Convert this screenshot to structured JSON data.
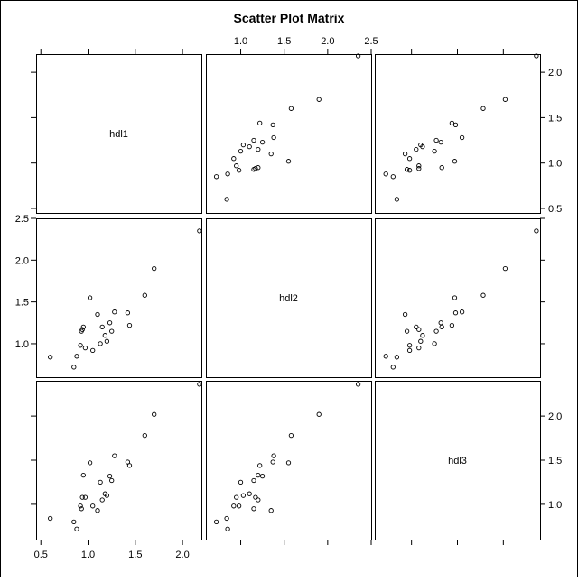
{
  "chart_data": {
    "type": "scatter",
    "title": "Scatter Plot Matrix",
    "variables": [
      "hdl1",
      "hdl2",
      "hdl3"
    ],
    "axes": {
      "hdl1": {
        "lim": [
          0.45,
          2.2
        ],
        "ticks": [
          0.5,
          1.0,
          1.5,
          2.0
        ],
        "tick_labels": [
          "0.5",
          "1.0",
          "1.5",
          "2.0"
        ]
      },
      "hdl2": {
        "lim": [
          0.6,
          2.5
        ],
        "ticks": [
          1.0,
          1.5,
          2.0,
          2.5
        ],
        "tick_labels": [
          "1.0",
          "1.5",
          "2.0",
          "2.5"
        ]
      },
      "hdl3": {
        "lim": [
          0.6,
          2.4
        ],
        "ticks": [
          0.5,
          1.0,
          1.5,
          2.0
        ],
        "tick_labels": [
          "0.5",
          "1.0",
          "1.5",
          "2.0"
        ]
      }
    },
    "tick_label_placement": {
      "top": [
        "hdl2"
      ],
      "right": [
        "hdl1",
        "hdl3"
      ],
      "bottom": [
        "hdl1"
      ],
      "left": [
        "hdl2"
      ]
    },
    "observations": [
      {
        "hdl1": 0.6,
        "hdl2": 0.84,
        "hdl3": 0.84
      },
      {
        "hdl1": 0.85,
        "hdl2": 0.72,
        "hdl3": 0.8
      },
      {
        "hdl1": 0.88,
        "hdl2": 0.85,
        "hdl3": 0.72
      },
      {
        "hdl1": 0.92,
        "hdl2": 0.98,
        "hdl3": 0.98
      },
      {
        "hdl1": 0.93,
        "hdl2": 1.15,
        "hdl3": 0.95
      },
      {
        "hdl1": 0.94,
        "hdl2": 1.17,
        "hdl3": 1.08
      },
      {
        "hdl1": 0.95,
        "hdl2": 1.2,
        "hdl3": 1.33
      },
      {
        "hdl1": 0.97,
        "hdl2": 0.95,
        "hdl3": 1.08
      },
      {
        "hdl1": 1.02,
        "hdl2": 1.55,
        "hdl3": 1.47
      },
      {
        "hdl1": 1.05,
        "hdl2": 0.92,
        "hdl3": 0.98
      },
      {
        "hdl1": 1.1,
        "hdl2": 1.35,
        "hdl3": 0.93
      },
      {
        "hdl1": 1.13,
        "hdl2": 1.0,
        "hdl3": 1.25
      },
      {
        "hdl1": 1.15,
        "hdl2": 1.2,
        "hdl3": 1.05
      },
      {
        "hdl1": 1.18,
        "hdl2": 1.1,
        "hdl3": 1.12
      },
      {
        "hdl1": 1.2,
        "hdl2": 1.03,
        "hdl3": 1.1
      },
      {
        "hdl1": 1.23,
        "hdl2": 1.25,
        "hdl3": 1.32
      },
      {
        "hdl1": 1.25,
        "hdl2": 1.15,
        "hdl3": 1.27
      },
      {
        "hdl1": 1.28,
        "hdl2": 1.38,
        "hdl3": 1.55
      },
      {
        "hdl1": 1.42,
        "hdl2": 1.37,
        "hdl3": 1.48
      },
      {
        "hdl1": 1.44,
        "hdl2": 1.22,
        "hdl3": 1.44
      },
      {
        "hdl1": 1.6,
        "hdl2": 1.58,
        "hdl3": 1.78
      },
      {
        "hdl1": 1.7,
        "hdl2": 1.9,
        "hdl3": 2.02
      },
      {
        "hdl1": 2.18,
        "hdl2": 2.35,
        "hdl3": 2.36
      }
    ],
    "grid": false,
    "legend": "none"
  }
}
